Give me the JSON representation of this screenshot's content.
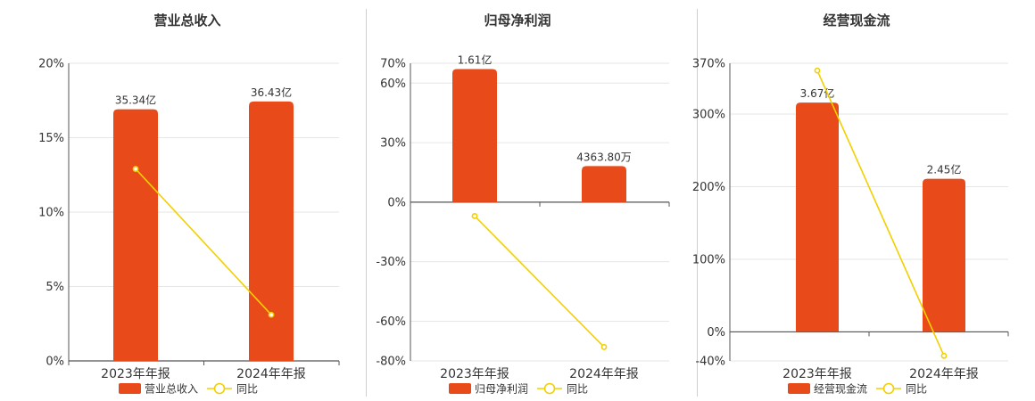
{
  "chart_data": [
    {
      "type": "bar",
      "title": "营业总收入",
      "categories": [
        "2023年年报",
        "2024年年报"
      ],
      "bar_series": {
        "name": "营业总收入",
        "labels": [
          "35.34亿",
          "36.43亿"
        ],
        "values": [
          35.34,
          36.43
        ],
        "unit": "亿"
      },
      "line_series": {
        "name": "同比",
        "values": [
          12.9,
          3.1
        ],
        "unit": "%"
      },
      "yticks": [
        "20%",
        "15%",
        "10%",
        "5%",
        "0%"
      ],
      "ylim": [
        0,
        20
      ],
      "bar_scale_max": 41.8
    },
    {
      "type": "bar",
      "title": "归母净利润",
      "categories": [
        "2023年年报",
        "2024年年报"
      ],
      "bar_series": {
        "name": "归母净利润",
        "labels": [
          "1.61亿",
          "4363.80万"
        ],
        "values": [
          1.61,
          0.4364
        ],
        "unit": "亿"
      },
      "line_series": {
        "name": "同比",
        "values": [
          -7,
          -73
        ],
        "unit": "%"
      },
      "yticks": [
        "70%",
        "60%",
        "30%",
        "0%",
        "-30%",
        "-60%",
        "-80%"
      ],
      "ylim": [
        -80,
        70
      ],
      "bar_scale_max": 1.68
    },
    {
      "type": "bar",
      "title": "经营现金流",
      "categories": [
        "2023年年报",
        "2024年年报"
      ],
      "bar_series": {
        "name": "经营现金流",
        "labels": [
          "3.67亿",
          "2.45亿"
        ],
        "values": [
          3.67,
          2.45
        ],
        "unit": "亿"
      },
      "line_series": {
        "name": "同比",
        "values": [
          360,
          -33
        ],
        "unit": "%"
      },
      "yticks": [
        "370%",
        "300%",
        "200%",
        "100%",
        "0%",
        "-40%"
      ],
      "ylim": [
        -40,
        370
      ],
      "bar_scale_max": 4.3
    }
  ],
  "colors": {
    "bar": "#e84a1a",
    "line": "#f2d000",
    "axis": "#555555",
    "grid": "#e6e6e6"
  }
}
